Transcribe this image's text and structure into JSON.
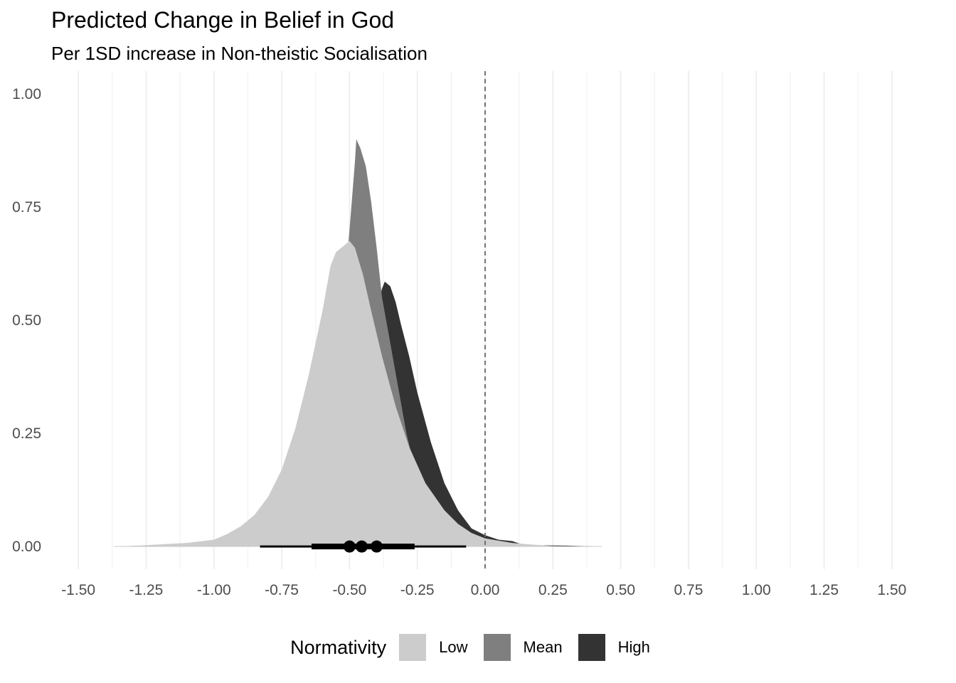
{
  "chart_data": {
    "type": "area",
    "title": "Predicted Change in Belief in God",
    "subtitle": "Per 1SD increase in Non-theistic Socialisation",
    "xlim": [
      -1.6,
      1.6
    ],
    "ylim": [
      -0.05,
      1.05
    ],
    "x_ticks": [
      -1.5,
      -1.25,
      -1.0,
      -0.75,
      -0.5,
      -0.25,
      0.0,
      0.25,
      0.5,
      0.75,
      1.0,
      1.25,
      1.5
    ],
    "x_tick_labels": [
      "-1.50",
      "-1.25",
      "-1.00",
      "-0.75",
      "-0.50",
      "-0.25",
      "0.00",
      "0.25",
      "0.50",
      "0.75",
      "1.00",
      "1.25",
      "1.50"
    ],
    "y_ticks": [
      0.0,
      0.25,
      0.5,
      0.75,
      1.0
    ],
    "y_tick_labels": [
      "0.00",
      "0.25",
      "0.50",
      "0.75",
      "1.00"
    ],
    "grid": true,
    "reference_line": {
      "x": 0.0,
      "style": "dashed",
      "color": "#666666"
    },
    "legend": {
      "title": "Normativity",
      "position": "bottom"
    },
    "series": [
      {
        "name": "High",
        "color": "#333333",
        "points": [
          [
            -1.22,
            0
          ],
          [
            -1.15,
            0.002
          ],
          [
            -1.0,
            0.008
          ],
          [
            -0.9,
            0.015
          ],
          [
            -0.8,
            0.03
          ],
          [
            -0.7,
            0.07
          ],
          [
            -0.6,
            0.15
          ],
          [
            -0.52,
            0.26
          ],
          [
            -0.46,
            0.38
          ],
          [
            -0.42,
            0.48
          ],
          [
            -0.38,
            0.57
          ],
          [
            -0.37,
            0.585
          ],
          [
            -0.35,
            0.575
          ],
          [
            -0.33,
            0.54
          ],
          [
            -0.31,
            0.49
          ],
          [
            -0.28,
            0.42
          ],
          [
            -0.25,
            0.34
          ],
          [
            -0.2,
            0.23
          ],
          [
            -0.15,
            0.14
          ],
          [
            -0.1,
            0.08
          ],
          [
            -0.05,
            0.04
          ],
          [
            0.0,
            0.025
          ],
          [
            0.05,
            0.015
          ],
          [
            0.1,
            0.012
          ],
          [
            0.13,
            0.006
          ],
          [
            0.18,
            0.003
          ],
          [
            0.3,
            0.002
          ],
          [
            0.43,
            0
          ]
        ]
      },
      {
        "name": "Mean",
        "color": "#7f7f7f",
        "points": [
          [
            -1.22,
            0
          ],
          [
            -1.1,
            0.003
          ],
          [
            -1.0,
            0.008
          ],
          [
            -0.9,
            0.018
          ],
          [
            -0.8,
            0.04
          ],
          [
            -0.7,
            0.1
          ],
          [
            -0.62,
            0.22
          ],
          [
            -0.56,
            0.38
          ],
          [
            -0.52,
            0.56
          ],
          [
            -0.5,
            0.7
          ],
          [
            -0.48,
            0.85
          ],
          [
            -0.475,
            0.9
          ],
          [
            -0.46,
            0.88
          ],
          [
            -0.44,
            0.84
          ],
          [
            -0.42,
            0.76
          ],
          [
            -0.4,
            0.66
          ],
          [
            -0.38,
            0.55
          ],
          [
            -0.35,
            0.45
          ],
          [
            -0.32,
            0.35
          ],
          [
            -0.29,
            0.25
          ],
          [
            -0.25,
            0.15
          ],
          [
            -0.2,
            0.08
          ],
          [
            -0.15,
            0.04
          ],
          [
            -0.1,
            0.02
          ],
          [
            0.0,
            0.008
          ],
          [
            0.1,
            0.003
          ],
          [
            0.2,
            0
          ]
        ]
      },
      {
        "name": "Low",
        "color": "#cccccc",
        "points": [
          [
            -1.37,
            0
          ],
          [
            -1.25,
            0.003
          ],
          [
            -1.1,
            0.008
          ],
          [
            -1.0,
            0.015
          ],
          [
            -0.95,
            0.028
          ],
          [
            -0.9,
            0.045
          ],
          [
            -0.85,
            0.07
          ],
          [
            -0.8,
            0.11
          ],
          [
            -0.75,
            0.17
          ],
          [
            -0.7,
            0.26
          ],
          [
            -0.65,
            0.38
          ],
          [
            -0.6,
            0.52
          ],
          [
            -0.57,
            0.62
          ],
          [
            -0.55,
            0.65
          ],
          [
            -0.52,
            0.665
          ],
          [
            -0.5,
            0.675
          ],
          [
            -0.48,
            0.66
          ],
          [
            -0.45,
            0.6
          ],
          [
            -0.42,
            0.52
          ],
          [
            -0.38,
            0.42
          ],
          [
            -0.33,
            0.31
          ],
          [
            -0.28,
            0.22
          ],
          [
            -0.22,
            0.14
          ],
          [
            -0.15,
            0.08
          ],
          [
            -0.1,
            0.05
          ],
          [
            -0.05,
            0.03
          ],
          [
            0.0,
            0.018
          ],
          [
            0.1,
            0.008
          ],
          [
            0.2,
            0.003
          ],
          [
            0.28,
            0
          ]
        ]
      }
    ],
    "interval": {
      "outer": [
        -0.83,
        -0.07
      ],
      "inner": [
        -0.64,
        -0.26
      ],
      "points": [
        -0.5,
        -0.455,
        -0.4
      ],
      "color": "#000000"
    }
  }
}
